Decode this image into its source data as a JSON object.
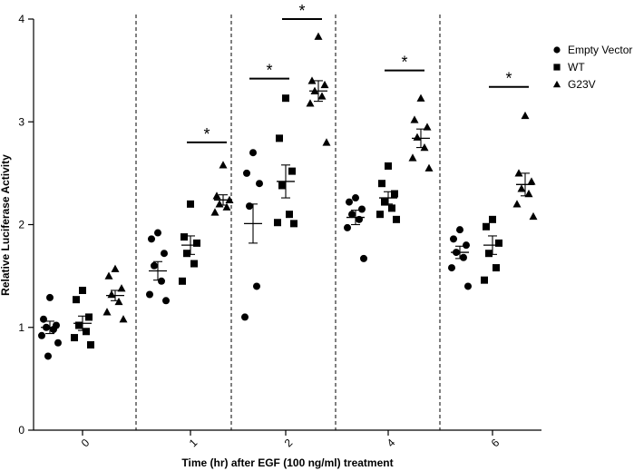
{
  "chart_data": {
    "type": "scatter",
    "title": "",
    "xlabel": "Time (hr) after EGF (100 ng/ml) treatment",
    "ylabel": "Relative Luciferase Activity",
    "ylim": [
      0,
      4
    ],
    "yticks": [
      0,
      1,
      2,
      3,
      4
    ],
    "categories": [
      "0",
      "1",
      "2",
      "4",
      "6"
    ],
    "legend_position": "right",
    "grid": false,
    "group_separators": "dashed",
    "series": [
      {
        "name": "Empty Vector",
        "marker": "circle",
        "points": [
          [
            1.29,
            1.08,
            1.02,
            1.0,
            0.98,
            0.92,
            0.85,
            0.72
          ],
          [
            1.92,
            1.86,
            1.72,
            1.6,
            1.45,
            1.32,
            1.26
          ],
          [
            2.7,
            2.5,
            2.4,
            2.18,
            1.4,
            1.1
          ],
          [
            2.26,
            2.22,
            2.15,
            2.1,
            2.05,
            1.97,
            1.67
          ],
          [
            1.95,
            1.86,
            1.8,
            1.73,
            1.68,
            1.58,
            1.4
          ]
        ],
        "means": [
          1.0,
          1.55,
          2.01,
          2.07,
          1.73
        ],
        "sems": [
          0.06,
          0.09,
          0.19,
          0.07,
          0.06
        ]
      },
      {
        "name": "WT",
        "marker": "square",
        "points": [
          [
            1.36,
            1.27,
            1.1,
            1.02,
            0.96,
            0.9,
            0.83
          ],
          [
            2.2,
            1.88,
            1.82,
            1.72,
            1.62,
            1.45
          ],
          [
            3.23,
            2.84,
            2.52,
            2.38,
            2.1,
            2.02,
            2.01
          ],
          [
            2.57,
            2.4,
            2.3,
            2.22,
            2.16,
            2.1,
            2.05
          ],
          [
            2.05,
            1.98,
            1.82,
            1.72,
            1.58,
            1.46
          ]
        ],
        "means": [
          1.04,
          1.8,
          2.42,
          2.26,
          1.8
        ],
        "sems": [
          0.07,
          0.09,
          0.16,
          0.06,
          0.09
        ]
      },
      {
        "name": "G23V",
        "marker": "triangle",
        "points": [
          [
            1.57,
            1.5,
            1.38,
            1.32,
            1.25,
            1.15,
            1.08
          ],
          [
            2.58,
            2.28,
            2.24,
            2.2,
            2.17,
            2.12
          ],
          [
            3.83,
            3.4,
            3.36,
            3.3,
            3.25,
            3.18,
            2.8
          ],
          [
            3.23,
            3.02,
            2.95,
            2.85,
            2.75,
            2.65,
            2.55
          ],
          [
            3.06,
            2.5,
            2.42,
            2.35,
            2.3,
            2.2,
            2.08
          ]
        ],
        "means": [
          1.31,
          2.24,
          3.3,
          2.84,
          2.39
        ],
        "sems": [
          0.05,
          0.05,
          0.1,
          0.09,
          0.11
        ]
      }
    ],
    "significance": [
      {
        "group": 1,
        "from_series": 1,
        "to_series": 2,
        "y": 2.8,
        "label": "*"
      },
      {
        "group": 2,
        "from_series": 0,
        "to_series": 1,
        "y": 3.42,
        "label": "*"
      },
      {
        "group": 2,
        "from_series": 1,
        "to_series": 2,
        "y": 4.0,
        "label": "*"
      },
      {
        "group": 3,
        "from_series": 1,
        "to_series": 2,
        "y": 3.5,
        "label": "*"
      },
      {
        "group": 4,
        "from_series": 1,
        "to_series": 2,
        "y": 3.34,
        "label": "*"
      }
    ]
  }
}
